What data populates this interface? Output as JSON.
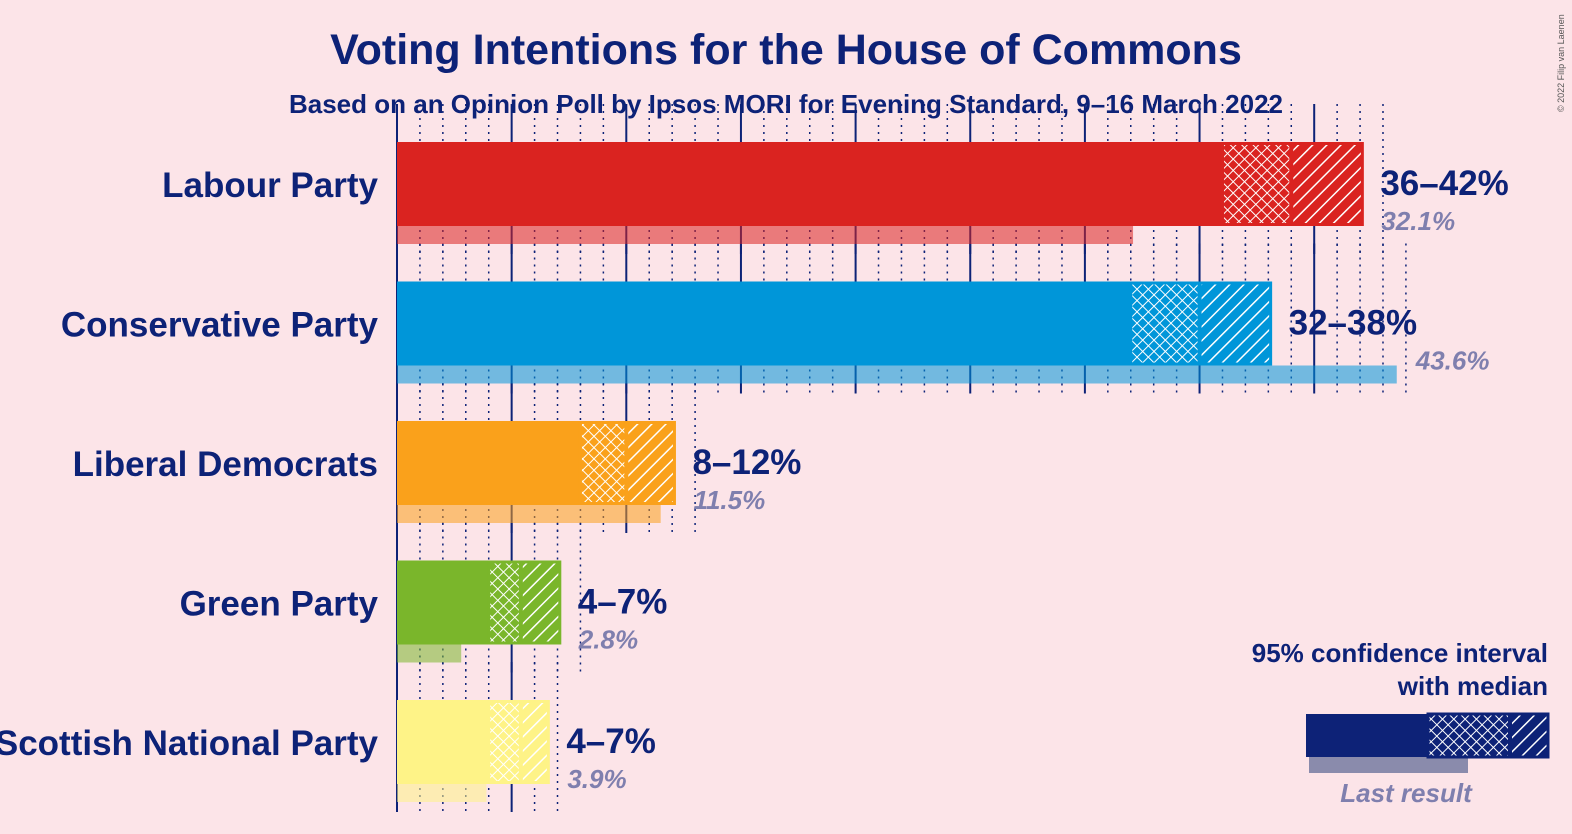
{
  "title": "Voting Intentions for the House of Commons",
  "subtitle": "Based on an Opinion Poll by Ipsos MORI for Evening Standard, 9–16 March 2022",
  "copyright": "© 2022 Filip van Laenen",
  "legend": {
    "line1": "95% confidence interval",
    "line2": "with median",
    "last_result": "Last result"
  },
  "chart_data": {
    "type": "bar",
    "orientation": "horizontal",
    "title": "Voting Intentions for the House of Commons",
    "subtitle": "Based on an Opinion Poll by Ipsos MORI for Evening Standard, 9–16 March 2022",
    "unit": "%",
    "grid": true,
    "legend_position": "bottom-right",
    "categories": [
      "Labour Party",
      "Conservative Party",
      "Liberal Democrats",
      "Green Party",
      "Scottish National Party"
    ],
    "series": [
      {
        "name": "95% confidence interval with median",
        "parties": [
          {
            "party": "Labour Party",
            "color": "#da2320",
            "low": 36,
            "ci80_low": 36.2,
            "median": 39,
            "ci80_high": 42,
            "high": 42.1,
            "label": "36–42%"
          },
          {
            "party": "Conservative Party",
            "color": "#0096d9",
            "low": 32,
            "ci80_low": 32.3,
            "median": 35,
            "ci80_high": 38,
            "high": 38.1,
            "label": "32–38%"
          },
          {
            "party": "Liberal Democrats",
            "color": "#faa11b",
            "low": 8,
            "ci80_low": 8.3,
            "median": 10,
            "ci80_high": 12,
            "high": 12.1,
            "label": "8–12%"
          },
          {
            "party": "Green Party",
            "color": "#7ab62b",
            "low": 4,
            "ci80_low": 4.2,
            "median": 5.4,
            "ci80_high": 7,
            "high": 7.1,
            "label": "4–7%"
          },
          {
            "party": "Scottish National Party",
            "color": "#fef387",
            "low": 4,
            "ci80_low": 4.2,
            "median": 5.4,
            "ci80_high": 6.5,
            "high": 6.6,
            "label": "4–7%"
          }
        ]
      },
      {
        "name": "Last result",
        "values": [
          32.1,
          43.6,
          11.5,
          2.8,
          3.9
        ],
        "labels": [
          "32.1%",
          "43.6%",
          "11.5%",
          "2.8%",
          "3.9%"
        ]
      }
    ],
    "xlim": [
      0,
      44
    ]
  }
}
